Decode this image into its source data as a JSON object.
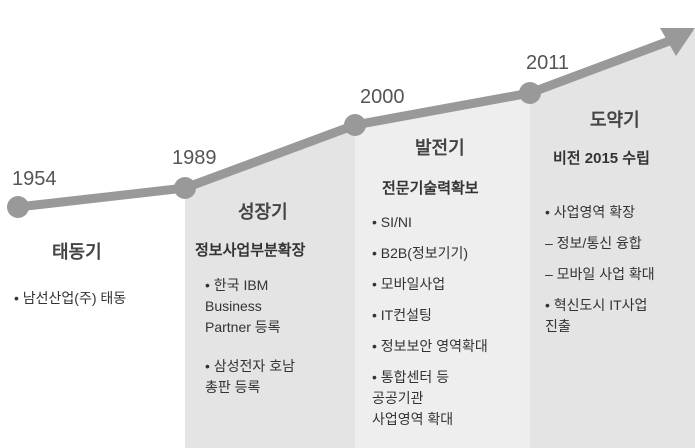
{
  "stages": [
    {
      "year": "1954",
      "title": "태동기",
      "subtitle": null,
      "items": [
        [
          "• 남선산업(주) 태동"
        ]
      ]
    },
    {
      "year": "1989",
      "title": "성장기",
      "subtitle": "정보사업부분확장",
      "items": [
        [
          "• 한국 IBM",
          "Business",
          "Partner 등록"
        ],
        [
          "• 삼성전자 호남",
          "총판 등록"
        ]
      ]
    },
    {
      "year": "2000",
      "title": "발전기",
      "subtitle": "전문기술력확보",
      "items": [
        [
          "• SI/NI"
        ],
        [
          "• B2B(정보기기)"
        ],
        [
          "• 모바일사업"
        ],
        [
          "• IT컨설팅"
        ],
        [
          "• 정보보안 영역확대"
        ],
        [
          "• 통합센터 등",
          "공공기관",
          "사업영역 확대"
        ]
      ]
    },
    {
      "year": "2011",
      "title": "도약기",
      "subtitle": "비전 2015 수립",
      "items": [
        [
          "• 사업영역 확장"
        ],
        [
          "– 정보/통신 융합"
        ],
        [
          "– 모바일 사업 확대"
        ],
        [
          "• 혁신도시 IT사업",
          "진출"
        ]
      ]
    }
  ]
}
